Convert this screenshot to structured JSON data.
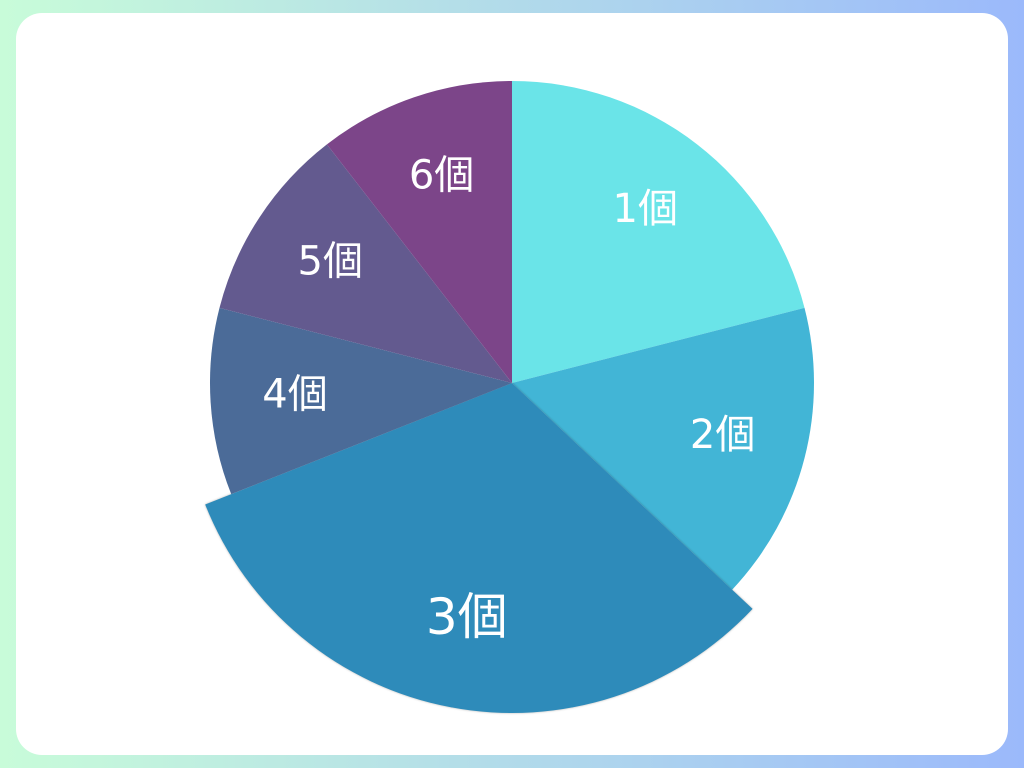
{
  "chart_data": {
    "type": "pie",
    "categories": [
      "1個",
      "2個",
      "3個",
      "4個",
      "5個",
      "6個"
    ],
    "values": [
      21,
      16,
      32,
      10,
      10.5,
      10.5
    ],
    "colors": [
      "#6ae4e8",
      "#42b5d6",
      "#2e8bba",
      "#4b6b98",
      "#635a8f",
      "#7c4589"
    ],
    "highlighted": "3個",
    "start_angle": "top",
    "direction": "clockwise",
    "legend": "none"
  }
}
